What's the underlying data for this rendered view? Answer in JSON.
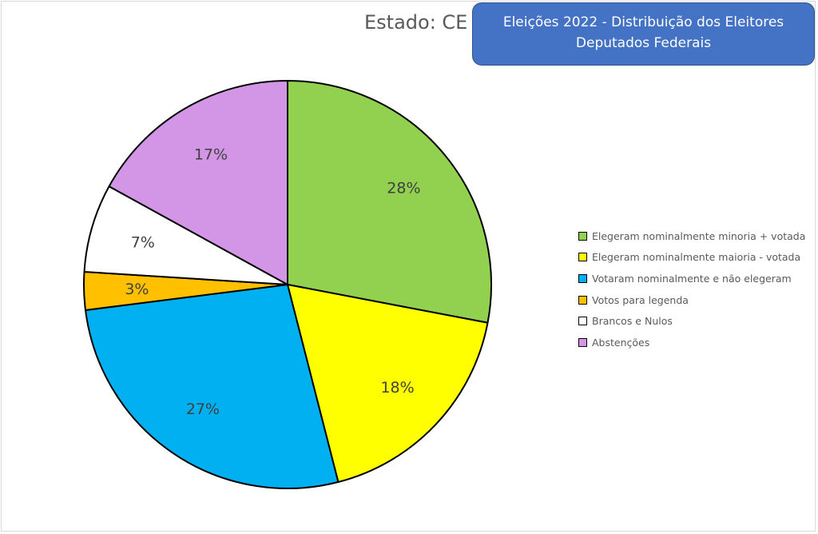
{
  "header": {
    "state_label": "Estado: CE",
    "title_line1": "Eleições 2022 - Distribuição dos Eleitores",
    "title_line2": "Deputados Federais"
  },
  "colors": {
    "title_box": "#4472c4",
    "slice_outline": "#000000"
  },
  "chart_data": {
    "type": "pie",
    "title": "Eleições 2022 - Distribuição dos Eleitores Deputados Federais",
    "subtitle": "Estado: CE",
    "legend_position": "right",
    "slices": [
      {
        "name": "Elegeram nominalmente minoria + votada",
        "value": 28,
        "label": "28%",
        "color": "#92d050"
      },
      {
        "name": "Elegeram nominalmente maioria - votada",
        "value": 18,
        "label": "18%",
        "color": "#ffff00"
      },
      {
        "name": "Votaram nominalmente e não elegeram",
        "value": 27,
        "label": "27%",
        "color": "#00b0f0"
      },
      {
        "name": "Votos para legenda",
        "value": 3,
        "label": "3%",
        "color": "#ffc000"
      },
      {
        "name": "Brancos e Nulos",
        "value": 7,
        "label": "7%",
        "color": "#ffffff"
      },
      {
        "name": "Abstenções",
        "value": 17,
        "label": "17%",
        "color": "#d396e6"
      }
    ]
  }
}
